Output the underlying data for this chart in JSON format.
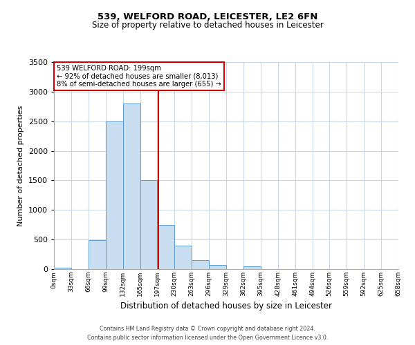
{
  "title1": "539, WELFORD ROAD, LEICESTER, LE2 6FN",
  "title2": "Size of property relative to detached houses in Leicester",
  "xlabel": "Distribution of detached houses by size in Leicester",
  "ylabel": "Number of detached properties",
  "bar_edges": [
    0,
    33,
    66,
    99,
    132,
    165,
    197,
    230,
    263,
    296,
    329,
    362,
    395,
    428,
    461,
    494,
    526,
    559,
    592,
    625,
    658
  ],
  "bar_heights": [
    20,
    0,
    490,
    2500,
    2800,
    1500,
    750,
    400,
    150,
    65,
    0,
    50,
    0,
    0,
    0,
    0,
    0,
    0,
    0,
    0
  ],
  "property_line_x": 199,
  "bar_facecolor": "#c9ddf0",
  "bar_edgecolor": "#5b9bd5",
  "vline_color": "#cc0000",
  "annotation_box_color": "#cc0000",
  "annotation_text_line1": "539 WELFORD ROAD: 199sqm",
  "annotation_text_line2": "← 92% of detached houses are smaller (8,013)",
  "annotation_text_line3": "8% of semi-detached houses are larger (655) →",
  "ylim": [
    0,
    3500
  ],
  "yticks": [
    0,
    500,
    1000,
    1500,
    2000,
    2500,
    3000,
    3500
  ],
  "xtick_labels": [
    "0sqm",
    "33sqm",
    "66sqm",
    "99sqm",
    "132sqm",
    "165sqm",
    "197sqm",
    "230sqm",
    "263sqm",
    "296sqm",
    "329sqm",
    "362sqm",
    "395sqm",
    "428sqm",
    "461sqm",
    "494sqm",
    "526sqm",
    "559sqm",
    "592sqm",
    "625sqm",
    "658sqm"
  ],
  "footnote1": "Contains HM Land Registry data © Crown copyright and database right 2024.",
  "footnote2": "Contains public sector information licensed under the Open Government Licence v3.0.",
  "bg_color": "#ffffff",
  "grid_color": "#c8d8e8"
}
